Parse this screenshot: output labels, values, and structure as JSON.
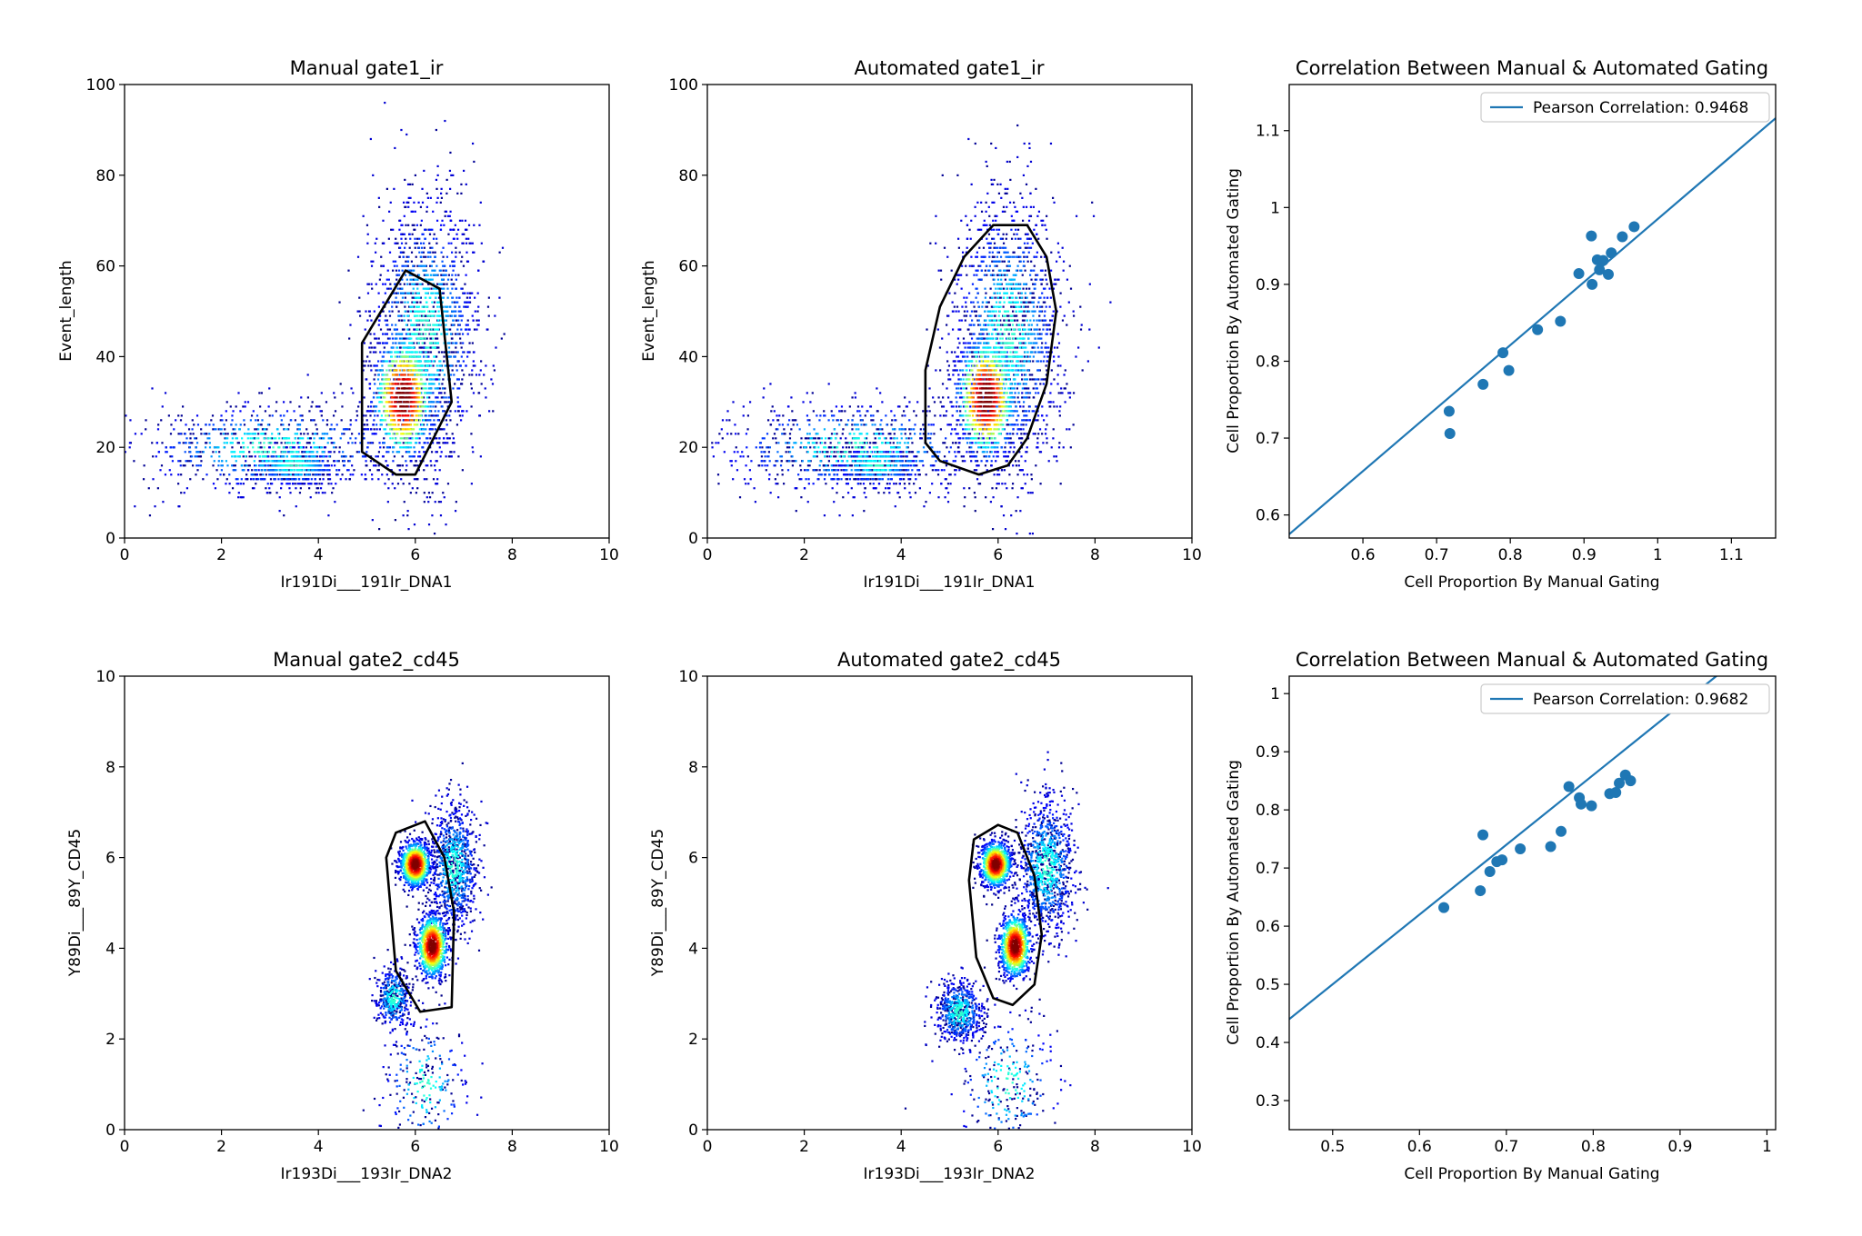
{
  "chart_data": [
    {
      "type": "density-scatter",
      "title": "Manual gate1_ir",
      "xlabel": "Ir191Di___191Ir_DNA1",
      "ylabel": "Event_length",
      "xlim": [
        0,
        10
      ],
      "ylim": [
        0,
        100
      ],
      "xticks": [
        0,
        2,
        4,
        6,
        8,
        10
      ],
      "yticks": [
        0,
        20,
        40,
        60,
        80,
        100
      ],
      "gate_polygon": [
        [
          5.8,
          59
        ],
        [
          6.5,
          55
        ],
        [
          6.75,
          30
        ],
        [
          6.0,
          14
        ],
        [
          5.6,
          14
        ],
        [
          4.9,
          19
        ],
        [
          4.9,
          43
        ]
      ],
      "populations": [
        {
          "cx": 5.75,
          "cy": 31,
          "sx": 0.32,
          "sy": 7.0,
          "n": 900,
          "core": true
        },
        {
          "cx": 3.5,
          "cy": 16,
          "sx": 0.45,
          "sy": 2.2,
          "n": 500,
          "core": false
        },
        {
          "cx": 6.2,
          "cy": 45,
          "sx": 0.55,
          "sy": 15,
          "n": 1800,
          "core": false
        },
        {
          "cx": 3.0,
          "cy": 20,
          "sx": 1.4,
          "sy": 5,
          "n": 900,
          "core": false
        }
      ],
      "grid": false
    },
    {
      "type": "density-scatter",
      "title": "Automated gate1_ir",
      "xlabel": "Ir191Di___191Ir_DNA1",
      "ylabel": "Event_length",
      "xlim": [
        0,
        10
      ],
      "ylim": [
        0,
        100
      ],
      "xticks": [
        0,
        2,
        4,
        6,
        8,
        10
      ],
      "yticks": [
        0,
        20,
        40,
        60,
        80,
        100
      ],
      "gate_polygon": [
        [
          5.9,
          69
        ],
        [
          6.6,
          69
        ],
        [
          7.0,
          62
        ],
        [
          7.2,
          50
        ],
        [
          7.0,
          34
        ],
        [
          6.6,
          22
        ],
        [
          6.2,
          16
        ],
        [
          5.6,
          14
        ],
        [
          4.8,
          17
        ],
        [
          4.5,
          21
        ],
        [
          4.5,
          37
        ],
        [
          4.8,
          51
        ],
        [
          5.3,
          62
        ]
      ],
      "populations": [
        {
          "cx": 5.75,
          "cy": 31,
          "sx": 0.32,
          "sy": 7.0,
          "n": 900,
          "core": true
        },
        {
          "cx": 3.5,
          "cy": 16,
          "sx": 0.45,
          "sy": 2.2,
          "n": 500,
          "core": false
        },
        {
          "cx": 6.2,
          "cy": 45,
          "sx": 0.55,
          "sy": 15,
          "n": 1800,
          "core": false
        },
        {
          "cx": 3.0,
          "cy": 20,
          "sx": 1.4,
          "sy": 5,
          "n": 900,
          "core": false
        }
      ],
      "grid": false
    },
    {
      "type": "scatter",
      "title": "Correlation Between Manual & Automated Gating",
      "xlabel": "Cell Proportion By Manual Gating",
      "ylabel": "Cell Proportion By Automated Gating",
      "xlim": [
        0.5,
        1.16
      ],
      "ylim": [
        0.57,
        1.16
      ],
      "xticks": [
        0.6,
        0.7,
        0.8,
        0.9,
        1.0,
        1.1
      ],
      "yticks": [
        0.6,
        0.7,
        0.8,
        0.9,
        1.0,
        1.1
      ],
      "points": [
        [
          0.717,
          0.735
        ],
        [
          0.718,
          0.706
        ],
        [
          0.763,
          0.77
        ],
        [
          0.79,
          0.811
        ],
        [
          0.798,
          0.788
        ],
        [
          0.837,
          0.841
        ],
        [
          0.868,
          0.852
        ],
        [
          0.893,
          0.914
        ],
        [
          0.91,
          0.963
        ],
        [
          0.911,
          0.9
        ],
        [
          0.918,
          0.932
        ],
        [
          0.921,
          0.919
        ],
        [
          0.926,
          0.931
        ],
        [
          0.933,
          0.913
        ],
        [
          0.937,
          0.941
        ],
        [
          0.952,
          0.962
        ],
        [
          0.968,
          0.975
        ]
      ],
      "fit_line": {
        "slope": 0.82,
        "intercept": 0.165
      },
      "legend": {
        "label": "Pearson Correlation: 0.9468",
        "position": "top-right"
      }
    },
    {
      "type": "density-scatter",
      "title": "Manual gate2_cd45",
      "xlabel": "Ir193Di___193Ir_DNA2",
      "ylabel": "Y89Di___89Y_CD45",
      "xlim": [
        0,
        10
      ],
      "ylim": [
        0,
        10
      ],
      "xticks": [
        0,
        2,
        4,
        6,
        8,
        10
      ],
      "yticks": [
        0,
        2,
        4,
        6,
        8,
        10
      ],
      "gate_polygon": [
        [
          6.2,
          6.8
        ],
        [
          6.6,
          6.0
        ],
        [
          6.8,
          4.8
        ],
        [
          6.75,
          2.7
        ],
        [
          6.1,
          2.6
        ],
        [
          5.6,
          3.5
        ],
        [
          5.4,
          6.0
        ],
        [
          5.6,
          6.55
        ]
      ],
      "populations": [
        {
          "cx": 6.0,
          "cy": 5.85,
          "sx": 0.16,
          "sy": 0.25,
          "n": 900,
          "core": true
        },
        {
          "cx": 6.35,
          "cy": 4.05,
          "sx": 0.16,
          "sy": 0.35,
          "n": 900,
          "core": true
        },
        {
          "cx": 6.8,
          "cy": 5.8,
          "sx": 0.25,
          "sy": 0.7,
          "n": 900,
          "core": false
        },
        {
          "cx": 5.55,
          "cy": 2.9,
          "sx": 0.18,
          "sy": 0.35,
          "n": 400,
          "core": false
        },
        {
          "cx": 6.2,
          "cy": 1.0,
          "sx": 0.45,
          "sy": 0.8,
          "n": 250,
          "core": false
        }
      ],
      "grid": false
    },
    {
      "type": "density-scatter",
      "title": "Automated gate2_cd45",
      "xlabel": "Ir193Di___193Ir_DNA2",
      "ylabel": "Y89Di___89Y_CD45",
      "xlim": [
        0,
        10
      ],
      "ylim": [
        0,
        10
      ],
      "xticks": [
        0,
        2,
        4,
        6,
        8,
        10
      ],
      "yticks": [
        0,
        2,
        4,
        6,
        8,
        10
      ],
      "gate_polygon": [
        [
          6.0,
          6.72
        ],
        [
          6.4,
          6.55
        ],
        [
          6.75,
          5.6
        ],
        [
          6.9,
          4.3
        ],
        [
          6.75,
          3.2
        ],
        [
          6.3,
          2.75
        ],
        [
          5.9,
          2.9
        ],
        [
          5.55,
          3.8
        ],
        [
          5.4,
          5.5
        ],
        [
          5.5,
          6.4
        ]
      ],
      "populations": [
        {
          "cx": 5.95,
          "cy": 5.85,
          "sx": 0.16,
          "sy": 0.25,
          "n": 900,
          "core": true
        },
        {
          "cx": 6.35,
          "cy": 4.05,
          "sx": 0.16,
          "sy": 0.35,
          "n": 900,
          "core": true
        },
        {
          "cx": 7.0,
          "cy": 5.8,
          "sx": 0.3,
          "sy": 0.75,
          "n": 1000,
          "core": false
        },
        {
          "cx": 5.2,
          "cy": 2.6,
          "sx": 0.25,
          "sy": 0.35,
          "n": 600,
          "core": false
        },
        {
          "cx": 6.2,
          "cy": 1.0,
          "sx": 0.55,
          "sy": 0.8,
          "n": 300,
          "core": false
        }
      ],
      "grid": false
    },
    {
      "type": "scatter",
      "title": "Correlation Between Manual & Automated Gating",
      "xlabel": "Cell Proportion By Manual Gating",
      "ylabel": "Cell Proportion By Automated Gating",
      "xlim": [
        0.45,
        1.01
      ],
      "ylim": [
        0.25,
        1.03
      ],
      "xticks": [
        0.5,
        0.6,
        0.7,
        0.8,
        0.9,
        1.0
      ],
      "yticks": [
        0.3,
        0.4,
        0.5,
        0.6,
        0.7,
        0.8,
        0.9,
        1.0
      ],
      "points": [
        [
          0.628,
          0.632
        ],
        [
          0.67,
          0.661
        ],
        [
          0.673,
          0.757
        ],
        [
          0.681,
          0.694
        ],
        [
          0.689,
          0.711
        ],
        [
          0.695,
          0.714
        ],
        [
          0.716,
          0.733
        ],
        [
          0.751,
          0.737
        ],
        [
          0.763,
          0.763
        ],
        [
          0.772,
          0.84
        ],
        [
          0.784,
          0.821
        ],
        [
          0.786,
          0.81
        ],
        [
          0.798,
          0.807
        ],
        [
          0.819,
          0.828
        ],
        [
          0.826,
          0.83
        ],
        [
          0.83,
          0.846
        ],
        [
          0.837,
          0.86
        ],
        [
          0.843,
          0.85
        ]
      ],
      "fit_line": {
        "slope": 1.2,
        "intercept": -0.1
      },
      "legend": {
        "label": "Pearson Correlation: 0.9682",
        "position": "top-right"
      }
    }
  ]
}
